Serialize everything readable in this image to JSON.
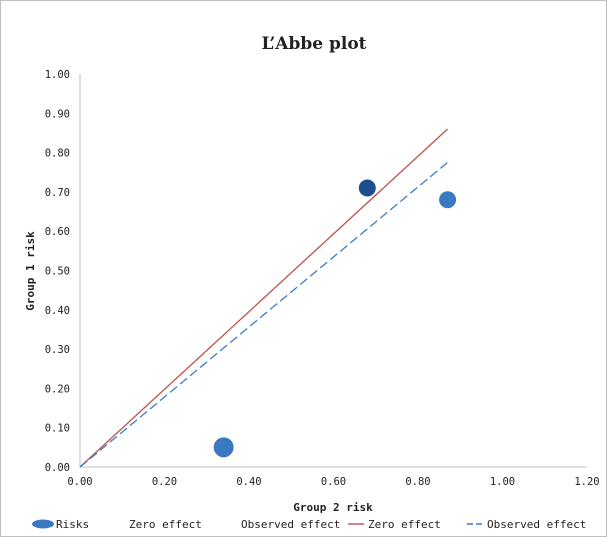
{
  "chart_data": {
    "type": "scatter",
    "title": "L’Abbe plot",
    "xlabel": "Group 2 risk",
    "ylabel": "Group 1 risk",
    "xlim": [
      0,
      1.2
    ],
    "ylim": [
      0,
      1.0
    ],
    "xticks": [
      "0.00",
      "0.20",
      "0.40",
      "0.60",
      "0.80",
      "1.00",
      "1.20"
    ],
    "yticks": [
      "0.00",
      "0.10",
      "0.20",
      "0.30",
      "0.40",
      "0.50",
      "0.60",
      "0.70",
      "0.80",
      "0.90",
      "1.00"
    ],
    "grid": false,
    "legend_position": "bottom",
    "series": [
      {
        "name": "Risks",
        "kind": "points",
        "color": "#3a78c2",
        "points": [
          {
            "x": 0.34,
            "y": 0.05,
            "color": "#3a78c2",
            "size": "large"
          },
          {
            "x": 0.68,
            "y": 0.71,
            "color": "#1c4f8c",
            "size": "medium"
          },
          {
            "x": 0.87,
            "y": 0.68,
            "color": "#3a78c2",
            "size": "medium"
          }
        ]
      },
      {
        "name": "Zero effect",
        "kind": "line",
        "color": "#c0504d",
        "dash": "solid",
        "points": [
          {
            "x": 0.0,
            "y": 0.0
          },
          {
            "x": 0.87,
            "y": 0.86
          }
        ]
      },
      {
        "name": "Observed effect",
        "kind": "line",
        "color": "#3e7bc4",
        "dash": "dashed",
        "points": [
          {
            "x": 0.0,
            "y": 0.0
          },
          {
            "x": 0.87,
            "y": 0.775
          }
        ]
      }
    ],
    "legend": [
      {
        "label": "Risks",
        "marker": "ellipse",
        "color": "#3a78c2"
      },
      {
        "label": "Zero effect",
        "marker": "none"
      },
      {
        "label": "Observed effect",
        "marker": "none"
      },
      {
        "label": "Zero effect",
        "marker": "line",
        "color": "#c0504d",
        "dash": "solid"
      },
      {
        "label": "Observed effect",
        "marker": "line",
        "color": "#3e7bc4",
        "dash": "dashed"
      }
    ]
  }
}
